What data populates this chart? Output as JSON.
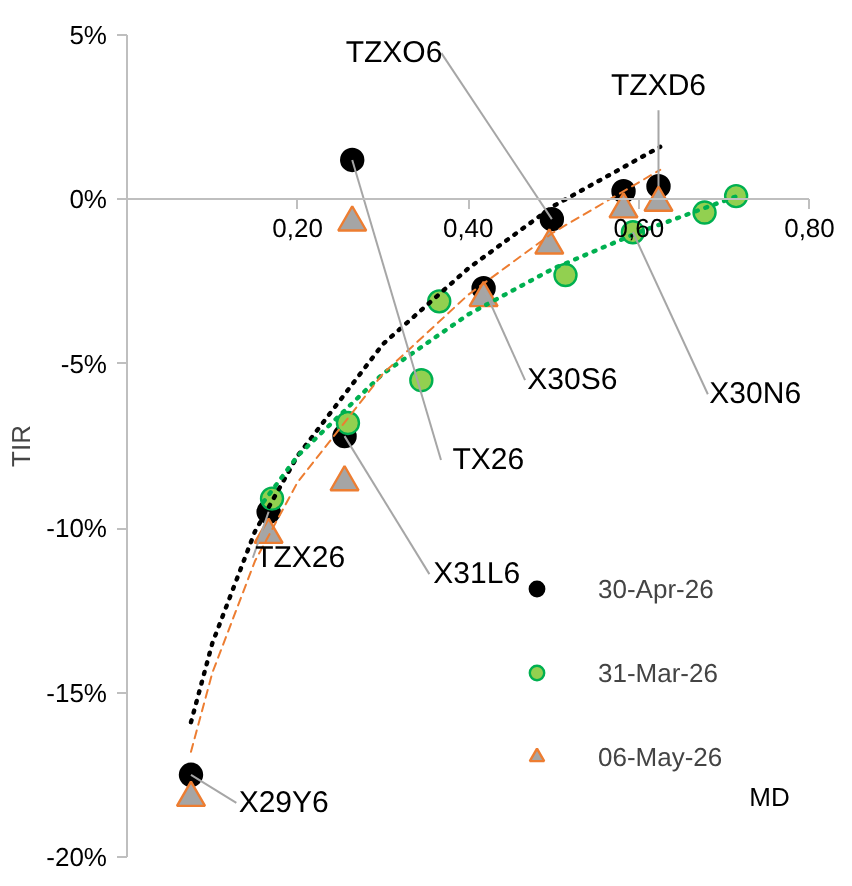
{
  "chart_data": {
    "type": "scatter",
    "xlabel": "MD",
    "ylabel": "TIR",
    "xlim": [
      0,
      0.8
    ],
    "ylim": [
      -20,
      5
    ],
    "xticks": [
      {
        "value": 0.2,
        "label": "0,20"
      },
      {
        "value": 0.4,
        "label": "0,40"
      },
      {
        "value": 0.6,
        "label": "0,60"
      },
      {
        "value": 0.8,
        "label": "0,80"
      }
    ],
    "yticks": [
      {
        "value": -20,
        "label": "-20%"
      },
      {
        "value": -15,
        "label": "-15%"
      },
      {
        "value": -10,
        "label": "-10%"
      },
      {
        "value": -5,
        "label": "-5%"
      },
      {
        "value": 0,
        "label": "0%"
      },
      {
        "value": 5,
        "label": "5%"
      }
    ],
    "grid": false,
    "legend": "right",
    "series": [
      {
        "name": "30-Apr-26",
        "type": "scatter",
        "marker": "circle",
        "color": "#000000",
        "x": [
          0.075,
          0.166,
          0.255,
          0.264,
          0.418,
          0.498,
          0.582,
          0.623
        ],
        "values": [
          -17.5,
          -9.5,
          -7.2,
          1.2,
          -2.7,
          -0.6,
          0.25,
          0.4
        ]
      },
      {
        "name": "31-Mar-26",
        "type": "scatter",
        "marker": "circle",
        "color": "#92d050",
        "x": [
          0.17,
          0.259,
          0.345,
          0.366,
          0.514,
          0.593,
          0.677,
          0.714
        ],
        "values": [
          -9.1,
          -6.8,
          -5.5,
          -3.1,
          -2.3,
          -1.0,
          -0.4,
          0.1
        ]
      },
      {
        "name": "06-May-26",
        "type": "scatter",
        "marker": "triangle",
        "color": "#a5a5a5",
        "x": [
          0.075,
          0.166,
          0.255,
          0.264,
          0.418,
          0.495,
          0.582,
          0.623
        ],
        "values": [
          -18.2,
          -10.2,
          -8.6,
          -0.7,
          -3.0,
          -1.4,
          -0.3,
          -0.1
        ]
      },
      {
        "type": "line",
        "line_style": "dotted",
        "color": "#000000",
        "x": [
          0.075,
          0.1,
          0.15,
          0.2,
          0.3,
          0.4,
          0.5,
          0.625
        ],
        "values": [
          -15.9,
          -13.5,
          -10.1,
          -7.8,
          -4.4,
          -2.1,
          -0.2,
          1.6
        ]
      },
      {
        "type": "line",
        "line_style": "dotted",
        "color": "#00b050",
        "x": [
          0.16,
          0.2,
          0.3,
          0.4,
          0.5,
          0.6,
          0.715
        ],
        "values": [
          -9.2,
          -7.8,
          -5.3,
          -3.5,
          -2.1,
          -1.0,
          0.1
        ]
      },
      {
        "type": "line",
        "line_style": "dashed",
        "color": "#ed7d31",
        "x": [
          0.075,
          0.1,
          0.15,
          0.2,
          0.3,
          0.4,
          0.5,
          0.625
        ],
        "values": [
          -16.8,
          -14.4,
          -11.0,
          -8.6,
          -5.3,
          -2.9,
          -1.0,
          0.9
        ]
      }
    ],
    "annotations": [
      {
        "text": "TZXO6",
        "x": 0.498,
        "y": -0.6
      },
      {
        "text": "TZXD6",
        "x": 0.623,
        "y": 0.4
      },
      {
        "text": "X30S6",
        "x": 0.418,
        "y": -2.7
      },
      {
        "text": "X30N6",
        "x": 0.593,
        "y": -1.0
      },
      {
        "text": "TX26",
        "x": 0.264,
        "y": 1.2
      },
      {
        "text": "TZX26",
        "x": 0.166,
        "y": -9.5
      },
      {
        "text": "X31L6",
        "x": 0.255,
        "y": -7.2
      },
      {
        "text": "X29Y6",
        "x": 0.075,
        "y": -17.5
      }
    ]
  }
}
